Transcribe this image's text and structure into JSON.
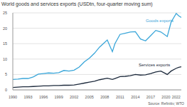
{
  "chart_data": {
    "type": "line",
    "title": "World goods and services exports (USDtn, four-quarter moving sum)",
    "source": "Source: Refinitiv; WTO",
    "x": [
      1990,
      1991,
      1992,
      1993,
      1994,
      1995,
      1996,
      1997,
      1998,
      1999,
      2000,
      2001,
      2002,
      2003,
      2004,
      2005,
      2006,
      2007,
      2008.5,
      2009.5,
      2010,
      2011,
      2012,
      2013,
      2014,
      2015,
      2016,
      2017,
      2018,
      2019,
      2020.25,
      2021,
      2022,
      2022.5,
      2023
    ],
    "series": [
      {
        "name": "Goods exports",
        "color": "#3aa6d9",
        "values": [
          3.4,
          3.5,
          3.7,
          3.7,
          4.2,
          5.1,
          5.3,
          5.5,
          5.4,
          5.6,
          6.3,
          6.1,
          6.4,
          7.4,
          9.1,
          10.3,
          11.9,
          13.9,
          16.2,
          12.4,
          15.0,
          18.0,
          18.4,
          18.8,
          18.9,
          16.5,
          15.9,
          17.6,
          19.3,
          18.8,
          17.3,
          22.0,
          24.8,
          24.0,
          23.5
        ]
      },
      {
        "name": "Services exports",
        "color": "#1d2a3c",
        "values": [
          0.8,
          0.9,
          1.0,
          1.0,
          1.1,
          1.2,
          1.3,
          1.3,
          1.4,
          1.4,
          1.5,
          1.5,
          1.6,
          1.9,
          2.2,
          2.5,
          2.8,
          3.3,
          3.8,
          3.4,
          3.7,
          4.3,
          4.4,
          4.6,
          5.0,
          4.8,
          4.9,
          5.3,
          5.8,
          6.1,
          5.0,
          6.1,
          7.0,
          7.3,
          7.5
        ]
      }
    ],
    "xlim": [
      1990,
      2023
    ],
    "xticks": [
      1990,
      1993,
      1996,
      1999,
      2002,
      2005,
      2008,
      2011,
      2014,
      2017,
      2020,
      2022
    ],
    "ylim": [
      0,
      25
    ],
    "yticks": [
      0,
      5,
      10,
      15,
      20,
      25
    ],
    "grid": true
  }
}
